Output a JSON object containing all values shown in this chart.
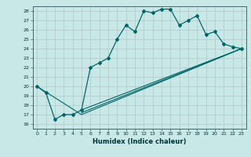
{
  "xlabel": "Humidex (Indice chaleur)",
  "bg_color": "#c8e8e8",
  "line_color": "#006666",
  "grid_color": "#b0c8c8",
  "xlim": [
    -0.5,
    23.5
  ],
  "ylim": [
    15.5,
    28.5
  ],
  "xticks": [
    0,
    1,
    2,
    3,
    4,
    5,
    6,
    7,
    8,
    9,
    10,
    11,
    12,
    13,
    14,
    15,
    16,
    17,
    18,
    19,
    20,
    21,
    22,
    23
  ],
  "yticks": [
    16,
    17,
    18,
    19,
    20,
    21,
    22,
    23,
    24,
    25,
    26,
    27,
    28
  ],
  "line1_x": [
    0,
    1,
    2,
    3,
    4,
    5,
    6,
    7,
    8,
    9,
    10,
    11,
    12,
    13,
    14,
    15,
    16,
    17,
    18,
    19,
    20,
    21,
    22,
    23
  ],
  "line1_y": [
    20.0,
    19.3,
    16.5,
    17.0,
    17.0,
    17.5,
    22.0,
    22.5,
    23.0,
    25.0,
    26.5,
    25.8,
    28.0,
    27.8,
    28.2,
    28.2,
    26.5,
    27.0,
    27.5,
    25.5,
    25.8,
    24.5,
    24.2,
    24.0
  ],
  "line2_x": [
    0,
    5,
    23
  ],
  "line2_y": [
    20.0,
    17.0,
    24.0
  ],
  "line3_x": [
    5,
    23
  ],
  "line3_y": [
    17.2,
    24.0
  ],
  "line4_x": [
    5,
    23
  ],
  "line4_y": [
    17.5,
    24.0
  ]
}
